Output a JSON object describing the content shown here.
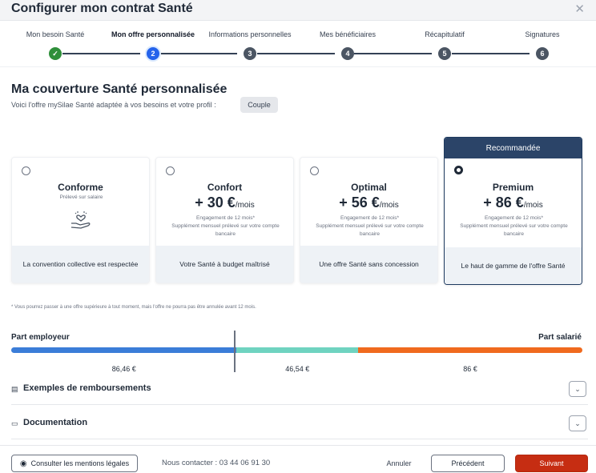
{
  "window": {
    "title": "Configurer mon contrat Santé",
    "close_icon": "close-icon"
  },
  "stepper": {
    "steps": [
      {
        "label": "Mon besoin Santé",
        "number": "✓",
        "state": "done"
      },
      {
        "label": "Mon offre personnalisée",
        "number": "2",
        "state": "active"
      },
      {
        "label": "Informations personnelles",
        "number": "3",
        "state": "todo"
      },
      {
        "label": "Mes bénéficiaires",
        "number": "4",
        "state": "todo"
      },
      {
        "label": "Récapitulatif",
        "number": "5",
        "state": "todo"
      },
      {
        "label": "Signatures",
        "number": "6",
        "state": "todo"
      }
    ]
  },
  "main": {
    "heading": "Ma couverture Santé personnalisée",
    "subtitle": "Voici l'offre mySilae Santé adaptée à vos besoins et votre profil :",
    "profile_chip": "Couple"
  },
  "offers": [
    {
      "name": "Conforme",
      "note": "Prélevé sur salaire",
      "price": "",
      "unit": "",
      "engagement": "",
      "detail": "",
      "foot": "La convention collective est respectée",
      "selected": false
    },
    {
      "name": "Confort",
      "price": "+ 30 €",
      "unit": "/mois",
      "engagement": "Engagement de 12 mois*",
      "detail": "Supplément mensuel prélevé sur votre compte bancaire",
      "foot": "Votre Santé à budget maîtrisé",
      "selected": false
    },
    {
      "name": "Optimal",
      "price": "+ 56 €",
      "unit": "/mois",
      "engagement": "Engagement de 12 mois*",
      "detail": "Supplément mensuel prélevé sur votre compte bancaire",
      "foot": "Une offre Santé sans concession",
      "selected": false
    },
    {
      "name": "Premium",
      "ribbon": "Recommandée",
      "price": "+ 86 €",
      "unit": "/mois",
      "engagement": "Engagement de 12 mois*",
      "detail": "Supplément mensuel prélevé sur votre compte bancaire",
      "foot": "Le haut de gamme de l'offre Santé",
      "selected": true
    }
  ],
  "disclaimer": "* Vous pourrez passer à une offre supérieure à tout moment, mais l'offre ne pourra pas être annulée avant 12 mois.",
  "contribution": {
    "left_label": "Part employeur",
    "right_label": "Part salarié",
    "segments": [
      {
        "amount": "86,46 €",
        "value": 86.46,
        "color": "#3b7dd8"
      },
      {
        "amount": "46,54 €",
        "value": 46.54,
        "color": "#6fd3c0"
      },
      {
        "amount": "86 €",
        "value": 86,
        "color": "#f06a1e"
      }
    ]
  },
  "sections": [
    {
      "label": "Exemples de remboursements",
      "icon": "document-icon"
    },
    {
      "label": "Documentation",
      "icon": "folder-icon"
    }
  ],
  "footer": {
    "legal_button": "Consulter les mentions légales",
    "contact": "Nous contacter : 03 44 06 91 30",
    "cancel": "Annuler",
    "previous": "Précédent",
    "next": "Suivant"
  }
}
